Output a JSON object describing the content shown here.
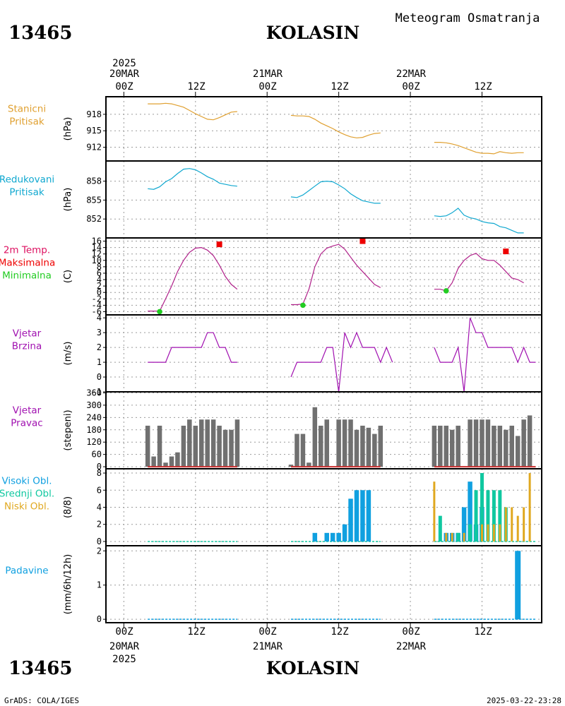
{
  "header": {
    "station_id": "13465",
    "station_name": "KOLASIN",
    "chart_type": "Meteogram Osmatranja",
    "footer_left": "GrADS: COLA/IGES",
    "footer_right": "2025-03-22-23:28"
  },
  "time_axis": {
    "year": "2025",
    "date_labels": [
      "20MAR",
      "21MAR",
      "22MAR"
    ],
    "hour_labels": [
      "00Z",
      "12Z",
      "00Z",
      "12Z",
      "00Z",
      "12Z"
    ],
    "range_hours": [
      -3,
      70
    ]
  },
  "colors": {
    "pressure": "#e0a030",
    "reduced": "#10a8d0",
    "temp_line": "#b0208a",
    "tmax": "#ee0000",
    "tmin": "#22cc22",
    "wind": "#a010b0",
    "dir_bar": "#707070",
    "dir_base": "#cc3030",
    "cloud_high": "#10a0e0",
    "cloud_mid": "#10c8a0",
    "cloud_low": "#e0a820",
    "precip": "#10a0e0"
  },
  "chart_data": [
    {
      "panel": "staticni",
      "type": "line",
      "label_lines": [
        "Stanicni",
        "Pritisak"
      ],
      "unit": "(hPa)",
      "ylim": [
        909.5,
        921.2
      ],
      "yticks": [
        912,
        915,
        918
      ],
      "tick_labels": [
        "912",
        "915",
        "918"
      ],
      "segments": [
        [
          [
            4,
            919.9
          ],
          [
            5,
            919.9
          ],
          [
            6,
            919.9
          ],
          [
            7,
            920.0
          ],
          [
            8,
            919.9
          ],
          [
            9,
            919.6
          ],
          [
            10,
            919.3
          ],
          [
            11,
            918.7
          ],
          [
            12,
            918.1
          ],
          [
            13,
            917.6
          ],
          [
            14,
            917.1
          ],
          [
            15,
            917.0
          ],
          [
            16,
            917.4
          ],
          [
            17,
            917.9
          ],
          [
            18,
            918.4
          ],
          [
            19,
            918.5
          ]
        ],
        [
          [
            28,
            917.8
          ],
          [
            29,
            917.7
          ],
          [
            30,
            917.7
          ],
          [
            31,
            917.6
          ],
          [
            32,
            917.1
          ],
          [
            33,
            916.4
          ],
          [
            34,
            915.9
          ],
          [
            35,
            915.4
          ],
          [
            36,
            914.8
          ],
          [
            37,
            914.3
          ],
          [
            38,
            913.9
          ],
          [
            39,
            913.7
          ],
          [
            40,
            913.8
          ],
          [
            41,
            914.2
          ],
          [
            42,
            914.5
          ],
          [
            43,
            914.6
          ]
        ],
        [
          [
            52,
            912.9
          ],
          [
            53,
            912.9
          ],
          [
            54,
            912.8
          ],
          [
            55,
            912.6
          ],
          [
            56,
            912.3
          ],
          [
            57,
            911.9
          ],
          [
            58,
            911.5
          ],
          [
            59,
            911.1
          ],
          [
            60,
            910.9
          ],
          [
            61,
            910.9
          ],
          [
            62,
            910.8
          ],
          [
            63,
            911.2
          ],
          [
            64,
            911.0
          ],
          [
            65,
            910.9
          ],
          [
            66,
            911.0
          ],
          [
            67,
            911.0
          ]
        ]
      ]
    },
    {
      "panel": "redukovani",
      "type": "line",
      "label_lines": [
        "Redukovani",
        "Pritisak"
      ],
      "unit": "(hPa)",
      "ylim": [
        849.0,
        861.2
      ],
      "yticks": [
        852,
        855,
        858
      ],
      "tick_labels": [
        "852",
        "855",
        "858"
      ],
      "segments": [
        [
          [
            4,
            856.8
          ],
          [
            5,
            856.7
          ],
          [
            6,
            857.1
          ],
          [
            7,
            857.9
          ],
          [
            8,
            858.4
          ],
          [
            9,
            859.2
          ],
          [
            10,
            859.9
          ],
          [
            11,
            860.0
          ],
          [
            12,
            859.8
          ],
          [
            13,
            859.3
          ],
          [
            14,
            858.7
          ],
          [
            15,
            858.3
          ],
          [
            16,
            857.7
          ],
          [
            17,
            857.5
          ],
          [
            18,
            857.3
          ],
          [
            19,
            857.2
          ]
        ],
        [
          [
            28,
            855.5
          ],
          [
            29,
            855.4
          ],
          [
            30,
            855.8
          ],
          [
            31,
            856.5
          ],
          [
            32,
            857.2
          ],
          [
            33,
            857.9
          ],
          [
            34,
            858.0
          ],
          [
            35,
            857.9
          ],
          [
            36,
            857.4
          ],
          [
            37,
            856.8
          ],
          [
            38,
            856.0
          ],
          [
            39,
            855.4
          ],
          [
            40,
            854.9
          ],
          [
            41,
            854.7
          ],
          [
            42,
            854.5
          ],
          [
            43,
            854.5
          ]
        ],
        [
          [
            52,
            852.5
          ],
          [
            53,
            852.4
          ],
          [
            54,
            852.5
          ],
          [
            55,
            853.0
          ],
          [
            56,
            853.7
          ],
          [
            57,
            852.6
          ],
          [
            58,
            852.2
          ],
          [
            59,
            852.0
          ],
          [
            60,
            851.6
          ],
          [
            61,
            851.4
          ],
          [
            62,
            851.3
          ],
          [
            63,
            850.8
          ],
          [
            64,
            850.6
          ],
          [
            65,
            850.2
          ],
          [
            66,
            849.8
          ],
          [
            67,
            849.8
          ]
        ]
      ]
    },
    {
      "panel": "temperatura",
      "type": "line",
      "label_lines": [
        "2m Temp.",
        "Maksimalna",
        "Minimalna"
      ],
      "unit": "(C)",
      "ylim": [
        -7,
        17
      ],
      "yticks": [
        -6,
        -4,
        -2,
        0,
        2,
        4,
        6,
        8,
        10,
        12,
        14,
        16
      ],
      "tick_labels": [
        "-6",
        "-4",
        "-2",
        "0",
        "2",
        "4",
        "6",
        "8",
        "10",
        "12",
        "14",
        "16"
      ],
      "segments": [
        [
          [
            4,
            -5.8
          ],
          [
            5,
            -5.8
          ],
          [
            6,
            -5.8
          ],
          [
            7,
            -2.0
          ],
          [
            8,
            2.0
          ],
          [
            9,
            6.5
          ],
          [
            10,
            10.0
          ],
          [
            11,
            12.5
          ],
          [
            12,
            13.8
          ],
          [
            13,
            14.0
          ],
          [
            14,
            13.2
          ],
          [
            15,
            11.5
          ],
          [
            16,
            8.5
          ],
          [
            17,
            5.0
          ],
          [
            18,
            2.5
          ],
          [
            19,
            1.0
          ]
        ],
        [
          [
            28,
            -3.8
          ],
          [
            29,
            -3.8
          ],
          [
            30,
            -3.6
          ],
          [
            31,
            1.0
          ],
          [
            32,
            8.0
          ],
          [
            33,
            12.0
          ],
          [
            34,
            13.8
          ],
          [
            35,
            14.5
          ],
          [
            36,
            15.0
          ],
          [
            37,
            13.5
          ],
          [
            38,
            11.0
          ],
          [
            39,
            8.5
          ],
          [
            40,
            6.5
          ],
          [
            41,
            4.5
          ],
          [
            42,
            2.5
          ],
          [
            43,
            1.5
          ]
        ],
        [
          [
            52,
            1.0
          ],
          [
            53,
            1.0
          ],
          [
            54,
            0.5
          ],
          [
            55,
            3.0
          ],
          [
            56,
            7.5
          ],
          [
            57,
            10.0
          ],
          [
            58,
            11.5
          ],
          [
            59,
            12.2
          ],
          [
            60,
            10.5
          ],
          [
            61,
            10.0
          ],
          [
            62,
            10.0
          ],
          [
            63,
            8.5
          ],
          [
            64,
            6.5
          ],
          [
            65,
            4.5
          ],
          [
            66,
            4.0
          ],
          [
            67,
            3.0
          ]
        ]
      ],
      "tmax": [
        [
          16,
          15.0
        ],
        [
          40,
          16.0
        ],
        [
          64,
          12.8
        ]
      ],
      "tmin": [
        [
          6,
          -6.0
        ],
        [
          30,
          -4.0
        ],
        [
          54,
          0.5
        ]
      ]
    },
    {
      "panel": "vjetar_brzina",
      "type": "line",
      "label_lines": [
        "Vjetar",
        "Brzina"
      ],
      "unit": "(m/s)",
      "ylim": [
        -1,
        4.2
      ],
      "yticks": [
        -1,
        0,
        1,
        2,
        3,
        4
      ],
      "tick_labels": [
        "-1",
        "0",
        "1",
        "2",
        "3",
        "4"
      ],
      "segments": [
        [
          [
            4,
            1
          ],
          [
            5,
            1
          ],
          [
            6,
            1
          ],
          [
            7,
            1
          ],
          [
            8,
            2
          ],
          [
            9,
            2
          ],
          [
            10,
            2
          ],
          [
            11,
            2
          ],
          [
            12,
            2
          ],
          [
            13,
            2
          ],
          [
            14,
            3
          ],
          [
            15,
            3
          ],
          [
            16,
            2
          ],
          [
            17,
            2
          ],
          [
            18,
            1
          ],
          [
            19,
            1
          ]
        ],
        [
          [
            28,
            0
          ],
          [
            29,
            1
          ],
          [
            30,
            1
          ],
          [
            31,
            1
          ],
          [
            32,
            1
          ],
          [
            33,
            1
          ],
          [
            34,
            2
          ],
          [
            35,
            2
          ],
          [
            36,
            -1
          ],
          [
            37,
            3
          ],
          [
            38,
            2
          ],
          [
            39,
            3
          ],
          [
            40,
            2
          ],
          [
            41,
            2
          ],
          [
            42,
            2
          ],
          [
            43,
            1
          ],
          [
            44,
            2
          ],
          [
            45,
            1
          ]
        ],
        [
          [
            52,
            2
          ],
          [
            53,
            1
          ],
          [
            54,
            1
          ],
          [
            55,
            1
          ],
          [
            56,
            2
          ],
          [
            57,
            -1
          ],
          [
            58,
            4
          ],
          [
            59,
            3
          ],
          [
            60,
            3
          ],
          [
            61,
            2
          ],
          [
            62,
            2
          ],
          [
            63,
            2
          ],
          [
            64,
            2
          ],
          [
            65,
            2
          ],
          [
            66,
            1
          ],
          [
            67,
            2
          ],
          [
            68,
            1
          ],
          [
            69,
            1
          ]
        ]
      ]
    },
    {
      "panel": "vjetar_pravac",
      "type": "bar",
      "label_lines": [
        "Vjetar",
        "Pravac"
      ],
      "unit": "(stepeni)",
      "ylim": [
        -10,
        365
      ],
      "yticks": [
        0,
        60,
        120,
        180,
        240,
        300,
        360
      ],
      "tick_labels": [
        "0",
        "60",
        "120",
        "180",
        "240",
        "300",
        "360"
      ],
      "x": [
        4,
        5,
        6,
        7,
        8,
        9,
        10,
        11,
        12,
        13,
        14,
        15,
        16,
        17,
        18,
        19,
        28,
        29,
        30,
        31,
        32,
        33,
        34,
        35,
        36,
        37,
        38,
        39,
        40,
        41,
        42,
        43,
        52,
        53,
        54,
        55,
        56,
        57,
        58,
        59,
        60,
        61,
        62,
        63,
        64,
        65,
        66,
        67,
        68,
        69
      ],
      "values": [
        200,
        50,
        200,
        20,
        50,
        70,
        200,
        230,
        200,
        230,
        230,
        230,
        200,
        180,
        180,
        230,
        10,
        160,
        160,
        20,
        290,
        200,
        230,
        0,
        230,
        230,
        230,
        180,
        200,
        190,
        160,
        200,
        200,
        200,
        200,
        180,
        200,
        0,
        230,
        230,
        230,
        230,
        200,
        200,
        180,
        200,
        150,
        230,
        250,
        0
      ],
      "baseline_segments": [
        [
          4,
          19
        ],
        [
          28,
          43
        ],
        [
          52,
          69
        ]
      ]
    },
    {
      "panel": "oblaci",
      "type": "bar",
      "label_lines": [
        "Visoki Obl.",
        "Srednji Obl.",
        "Niski Obl."
      ],
      "unit": "(8/8)",
      "ylim": [
        -0.5,
        8.5
      ],
      "yticks": [
        0,
        2,
        4,
        6,
        8
      ],
      "tick_labels": [
        "0",
        "2",
        "4",
        "6",
        "8"
      ],
      "series": [
        {
          "name": "Visoki Obl.",
          "x": [
            32,
            34,
            35,
            36,
            37,
            38,
            39,
            40,
            41,
            54,
            55,
            56,
            57,
            58,
            59,
            60
          ],
          "values": [
            1,
            1,
            1,
            1,
            2,
            5,
            6,
            6,
            6,
            1,
            1,
            1,
            4,
            7,
            2,
            4
          ]
        },
        {
          "name": "Srednji Obl.",
          "x": [
            53,
            56,
            58,
            59,
            60,
            61,
            62,
            63,
            64
          ],
          "values": [
            3,
            1,
            2,
            6,
            8,
            6,
            6,
            6,
            4
          ]
        },
        {
          "name": "Niski Obl.",
          "x": [
            52,
            54,
            55,
            57,
            60,
            61,
            62,
            63,
            64,
            65,
            66,
            67,
            68
          ],
          "values": [
            7,
            1,
            1,
            1,
            2,
            2,
            2,
            2,
            4,
            4,
            3,
            4,
            8
          ]
        }
      ],
      "baseline_segments": [
        [
          4,
          19
        ],
        [
          28,
          43
        ],
        [
          52,
          69
        ]
      ]
    },
    {
      "panel": "padavine",
      "type": "bar",
      "label_lines": [
        "Padavine"
      ],
      "unit": "(mm/6h/12h)",
      "ylim": [
        -0.1,
        2.15
      ],
      "yticks": [
        0,
        1,
        2
      ],
      "tick_labels": [
        "0",
        "1",
        "2"
      ],
      "x": [
        66
      ],
      "values": [
        2.0
      ],
      "baseline_segments": [
        [
          4,
          19
        ],
        [
          28,
          43
        ],
        [
          52,
          69
        ]
      ]
    }
  ]
}
